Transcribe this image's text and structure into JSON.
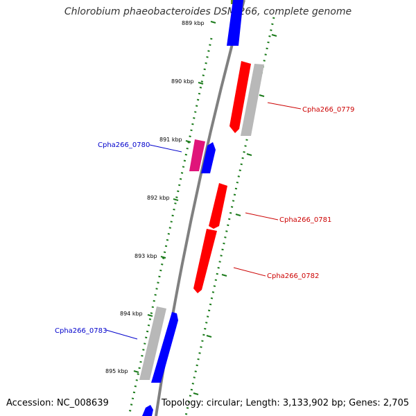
{
  "title": "Chlorobium phaeobacteroides DSM 266, complete genome",
  "accession": "Accession: NC_008639",
  "summary": "Topology: circular; Length: 3,133,902 bp; Genes: 2,705",
  "colors": {
    "forward_gene": "#0000ff",
    "reverse_gene": "#ff0000",
    "other_gene": "#b8b8b8",
    "pink_gene": "#e0147a",
    "olive_gene": "#6b8e23",
    "tick": "#1a7a1a",
    "backbone": "#808080",
    "label_blue": "#0000cc",
    "label_red": "#cc0000"
  },
  "ruler": [
    {
      "label": "889 kbp"
    },
    {
      "label": "890 kbp"
    },
    {
      "label": "891 kbp"
    },
    {
      "label": "892 kbp"
    },
    {
      "label": "893 kbp"
    },
    {
      "label": "894 kbp"
    },
    {
      "label": "895 kbp"
    }
  ],
  "gene_labels": [
    {
      "name": "Cpha266_0779",
      "color": "red"
    },
    {
      "name": "Cpha266_0780",
      "color": "blue"
    },
    {
      "name": "Cpha266_0781",
      "color": "red"
    },
    {
      "name": "Cpha266_0782",
      "color": "red"
    },
    {
      "name": "Cpha266_0783",
      "color": "blue"
    }
  ]
}
